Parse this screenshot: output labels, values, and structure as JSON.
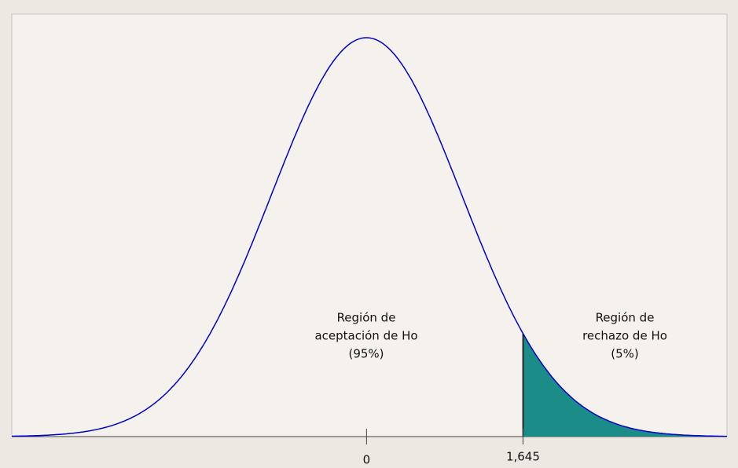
{
  "chart_data": {
    "type": "normal-test",
    "annotations": [
      {
        "lines": [
          "Región de",
          "aceptación de Ho",
          "(95%)"
        ]
      },
      {
        "lines": [
          "Región de",
          "rechazo de Ho",
          "(5%)"
        ]
      }
    ],
    "xlim": [
      -3.73,
      3.79
    ],
    "ylim": [
      0,
      0.4225
    ],
    "xticks": [
      0,
      {
        "value": 1.645,
        "label": "1,645"
      }
    ],
    "curve_color": "#0000cc",
    "shade_color": "#1b8c88"
  }
}
